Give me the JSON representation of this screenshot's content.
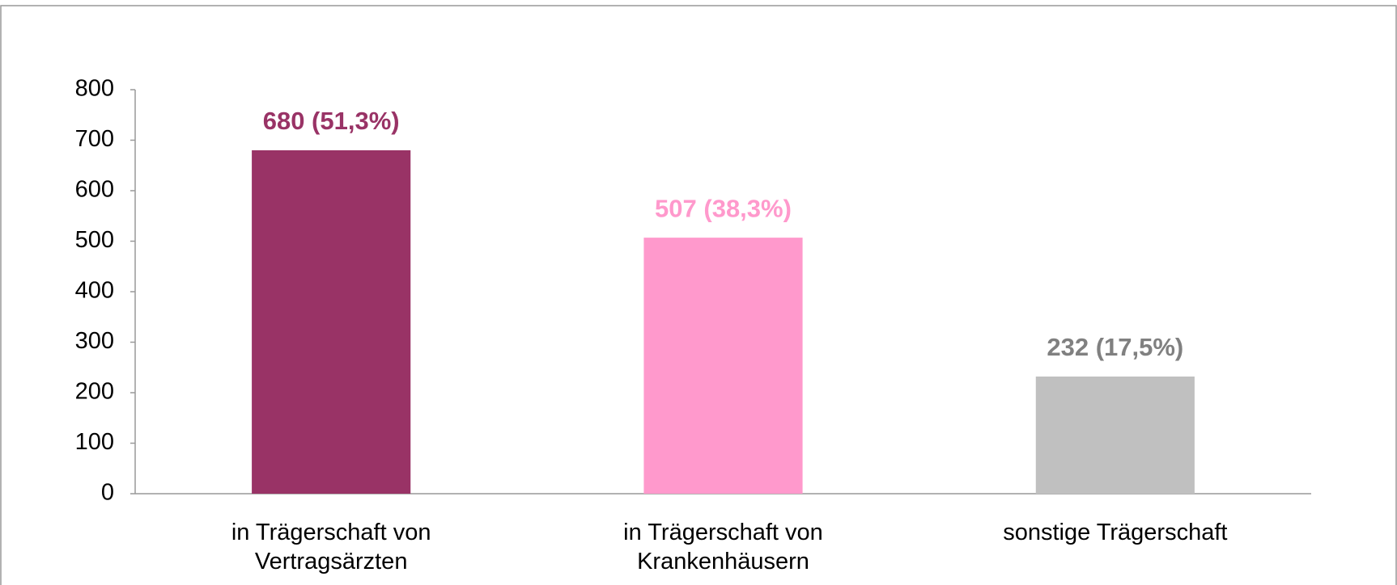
{
  "chart_data": {
    "type": "bar",
    "categories": [
      "in Trägerschaft von Vertragsärzten",
      "in Trägerschaft von Krankenhäusern",
      "sonstige Trägerschaft"
    ],
    "values": [
      680,
      507,
      232
    ],
    "value_labels": [
      "680 (51,3%)",
      "507 (38,3%)",
      "232 (17,5%)"
    ],
    "colors": [
      "#993366",
      "#ff99cc",
      "#c0c0c0"
    ],
    "label_colors": [
      "#993366",
      "#ff99cc",
      "#808080"
    ],
    "ylim": [
      0,
      800
    ],
    "yticks": [
      0,
      100,
      200,
      300,
      400,
      500,
      600,
      700,
      800
    ],
    "grid": false
  }
}
